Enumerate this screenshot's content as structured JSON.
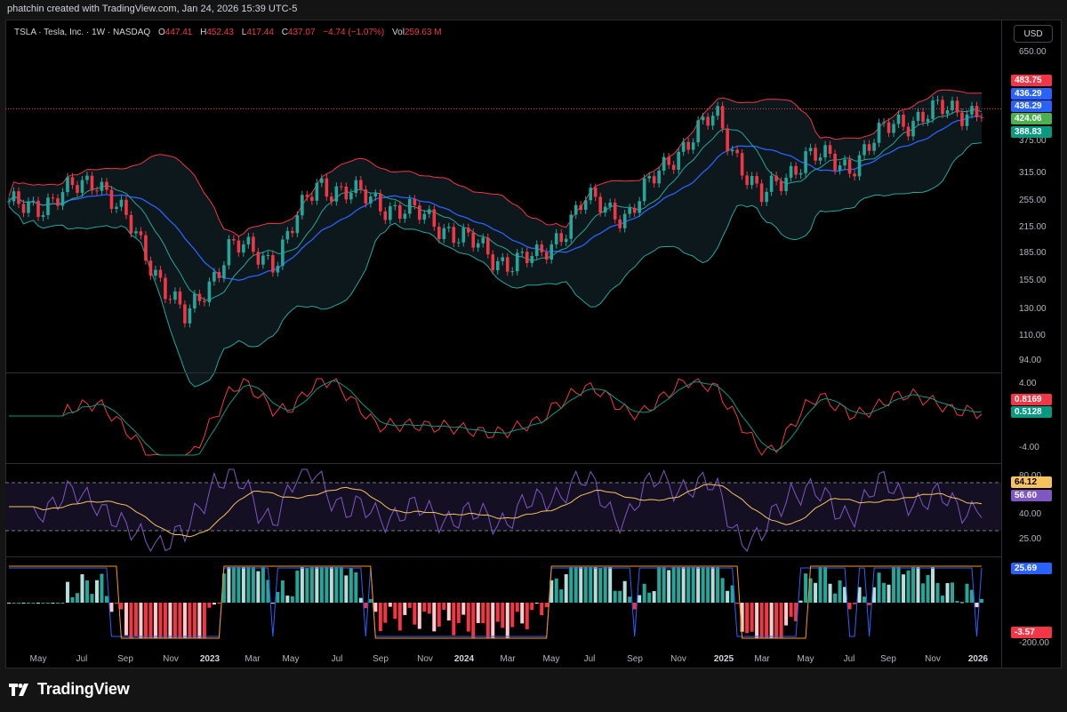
{
  "header": {
    "caption": "phatchin created with TradingView.com, Jan 24, 2026 15:39 UTC-5"
  },
  "legend": {
    "symbol": "TSLA · Tesla, Inc. · 1W · NASDAQ",
    "o_label": "O",
    "o_value": "447.41",
    "h_label": "H",
    "h_value": "452.43",
    "l_label": "L",
    "l_value": "417.44",
    "c_label": "C",
    "c_value": "437.07",
    "change": "−4.74 (−1.07%)",
    "vol_label": "Vol",
    "vol_value": "259.63 M"
  },
  "currency_button": "USD",
  "price_scale": {
    "ticks": [
      "650.00",
      "375.00",
      "315.00",
      "255.00",
      "215.00",
      "185.00",
      "155.00",
      "130.00",
      "110.00",
      "94.00"
    ],
    "badges": {
      "upper_band": "483.75",
      "last_price": "436.29",
      "basis": "436.29",
      "ma": "424.06",
      "lower_band": "388.83"
    }
  },
  "macd_scale": {
    "ticks": [
      "4.00",
      "-4.00"
    ],
    "badges": {
      "macd": "0.8169",
      "signal": "0.5128"
    }
  },
  "rsi_scale": {
    "ticks": [
      "80.00",
      "40.00",
      "25.00"
    ],
    "badges": {
      "rsi_ma": "64.12",
      "rsi": "56.60"
    }
  },
  "osc_scale": {
    "ticks": [
      "-200.00"
    ],
    "badges": {
      "line": "25.69",
      "hist": "-3.57"
    }
  },
  "time_axis": [
    "May",
    "Jul",
    "Sep",
    "Nov",
    "2023",
    "Mar",
    "May",
    "Jul",
    "Sep",
    "Nov",
    "2024",
    "Mar",
    "May",
    "Jul",
    "Sep",
    "Nov",
    "2025",
    "Mar",
    "May",
    "Jul",
    "Sep",
    "Nov",
    "2026"
  ],
  "colors": {
    "up": "#26a69a",
    "down": "#f23645",
    "upper_band": "#f23645",
    "lower_band": "#26a69a",
    "basis": "#2962ff",
    "ma": "#26a69a",
    "rsi": "#7e57c2",
    "rsi_ma": "#f7c35f",
    "background": "#000000"
  },
  "footer": {
    "brand": "TradingView"
  },
  "chart_data": {
    "type": "line",
    "title": "TSLA · Tesla, Inc. · 1W · NASDAQ",
    "price_axis_ticks": [
      94,
      110,
      130,
      155,
      185,
      215,
      255,
      315,
      375,
      650
    ],
    "scale": "log",
    "series": [
      {
        "name": "Close",
        "x": [
          "2022-05",
          "2022-07",
          "2022-09",
          "2022-11",
          "2023-01",
          "2023-03",
          "2023-05",
          "2023-07",
          "2023-09",
          "2023-11",
          "2024-01",
          "2024-03",
          "2024-05",
          "2024-07",
          "2024-09",
          "2024-11",
          "2025-01",
          "2025-03",
          "2025-05",
          "2025-07",
          "2025-09",
          "2025-11",
          "2026-01"
        ],
        "values": [
          240,
          250,
          290,
          190,
          120,
          190,
          175,
          280,
          255,
          235,
          210,
          175,
          175,
          250,
          230,
          330,
          420,
          250,
          330,
          310,
          400,
          430,
          437
        ]
      }
    ],
    "ohlc_last": {
      "open": 447.41,
      "high": 452.43,
      "low": 417.44,
      "close": 437.07,
      "change": -4.74,
      "change_pct": -1.07,
      "volume": "259.63 M"
    }
  }
}
